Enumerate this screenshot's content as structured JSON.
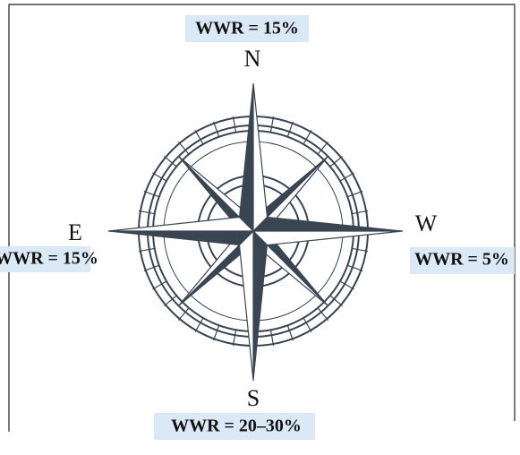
{
  "directions": [
    {
      "letter": "N",
      "wwr": "WWR = 15%"
    },
    {
      "letter": "E",
      "wwr": "WWR = 15%"
    },
    {
      "letter": "W",
      "wwr": "WWR = 5%"
    },
    {
      "letter": "S",
      "wwr": "WWR = 20–30%"
    }
  ]
}
